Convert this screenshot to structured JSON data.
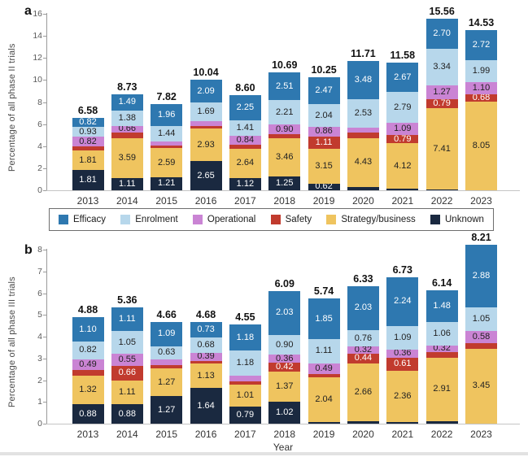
{
  "colors": {
    "efficacy": "#2e78b0",
    "enrolment": "#b7d7eb",
    "operational": "#ca84d4",
    "safety": "#c13b2e",
    "strategy_business": "#efc45f",
    "unknown": "#1a2940",
    "label_dark": "#222222",
    "label_light": "#ffffff"
  },
  "legend": {
    "items": [
      {
        "key": "efficacy",
        "label": "Efficacy"
      },
      {
        "key": "enrolment",
        "label": "Enrolment"
      },
      {
        "key": "operational",
        "label": "Operational"
      },
      {
        "key": "safety",
        "label": "Safety"
      },
      {
        "key": "strategy_business",
        "label": "Strategy/business"
      },
      {
        "key": "unknown",
        "label": "Unknown"
      }
    ]
  },
  "chart_data": [
    {
      "type": "bar",
      "stacked": true,
      "panel_label": "a",
      "ylabel": "Percentage of all phase II trials",
      "xlabel": "",
      "ylim": [
        0,
        16
      ],
      "ytick_step": 2,
      "legend_position": "below panel a, boxed, horizontal",
      "grid": false,
      "categories": [
        "2013",
        "2014",
        "2015",
        "2016",
        "2017",
        "2018",
        "2019",
        "2020",
        "2021",
        "2022",
        "2023"
      ],
      "totals": [
        "6.58",
        "8.73",
        "7.82",
        "10.04",
        "8.60",
        "10.69",
        "10.25",
        "11.71",
        "11.58",
        "15.56",
        "14.53"
      ],
      "series": [
        {
          "name": "Efficacy",
          "key": "efficacy",
          "text": "light",
          "values": [
            0.82,
            1.49,
            1.96,
            2.09,
            2.25,
            2.51,
            2.47,
            3.48,
            2.67,
            2.7,
            2.72
          ],
          "labels": [
            "0.82",
            "1.49",
            "1.96",
            "2.09",
            "2.25",
            "2.51",
            "2.47",
            "3.48",
            "2.67",
            "2.70",
            "2.72"
          ]
        },
        {
          "name": "Enrolment",
          "key": "enrolment",
          "text": "dark",
          "values": [
            0.93,
            1.38,
            1.44,
            1.69,
            1.41,
            2.21,
            2.04,
            2.53,
            2.79,
            3.34,
            1.99
          ],
          "labels": [
            "0.93",
            "1.38",
            "1.44",
            "1.69",
            "1.41",
            "2.21",
            "2.04",
            "2.53",
            "2.79",
            "3.34",
            "1.99"
          ]
        },
        {
          "name": "Operational",
          "key": "operational",
          "text": "dark",
          "values": [
            0.82,
            0.66,
            0.35,
            0.4,
            0.84,
            0.9,
            0.86,
            0.5,
            1.09,
            1.27,
            1.1
          ],
          "labels": [
            "0.82",
            "0.66",
            "",
            "",
            "0.84",
            "0.90",
            "0.86",
            "",
            "1.09",
            "1.27",
            "1.10"
          ]
        },
        {
          "name": "Safety",
          "key": "safety",
          "text": "light",
          "values": [
            0.39,
            0.5,
            0.27,
            0.28,
            0.34,
            0.36,
            1.11,
            0.45,
            0.79,
            0.79,
            0.68
          ],
          "labels": [
            "",
            "",
            "",
            "",
            "",
            "",
            "1.11",
            "",
            "0.79",
            "0.79",
            "0.68"
          ]
        },
        {
          "name": "Strategy/business",
          "key": "strategy_business",
          "text": "dark",
          "values": [
            1.81,
            3.59,
            2.59,
            2.93,
            2.64,
            3.46,
            3.15,
            4.43,
            4.12,
            7.41,
            8.05
          ],
          "labels": [
            "1.81",
            "3.59",
            "2.59",
            "2.93",
            "2.64",
            "3.46",
            "3.15",
            "4.43",
            "4.12",
            "7.41",
            "8.05"
          ]
        },
        {
          "name": "Unknown",
          "key": "unknown",
          "text": "light",
          "values": [
            1.81,
            1.11,
            1.21,
            2.65,
            1.12,
            1.25,
            0.62,
            0.32,
            0.12,
            0.05,
            0
          ],
          "labels": [
            "1.81",
            "1.11",
            "1.21",
            "2.65",
            "1.12",
            "1.25",
            "0.62",
            "",
            "",
            "",
            ""
          ]
        }
      ]
    },
    {
      "type": "bar",
      "stacked": true,
      "panel_label": "b",
      "ylabel": "Percentage of all phase III trials",
      "xlabel": "Year",
      "ylim": [
        0,
        8
      ],
      "ytick_step": 1,
      "grid": false,
      "categories": [
        "2013",
        "2014",
        "2015",
        "2016",
        "2017",
        "2018",
        "2019",
        "2020",
        "2021",
        "2022",
        "2023"
      ],
      "totals": [
        "4.88",
        "5.36",
        "4.66",
        "4.68",
        "4.55",
        "6.09",
        "5.74",
        "6.33",
        "6.73",
        "6.14",
        "8.21"
      ],
      "series": [
        {
          "name": "Efficacy",
          "key": "efficacy",
          "text": "light",
          "values": [
            1.1,
            1.11,
            1.09,
            0.73,
            1.18,
            2.03,
            1.85,
            2.03,
            2.24,
            1.48,
            2.88
          ],
          "labels": [
            "1.10",
            "1.11",
            "1.09",
            "0.73",
            "1.18",
            "2.03",
            "1.85",
            "2.03",
            "2.24",
            "1.48",
            "2.88"
          ]
        },
        {
          "name": "Enrolment",
          "key": "enrolment",
          "text": "dark",
          "values": [
            0.82,
            1.05,
            0.63,
            0.68,
            1.18,
            0.9,
            1.11,
            0.76,
            1.09,
            1.06,
            1.05
          ],
          "labels": [
            "0.82",
            "1.05",
            "0.63",
            "0.68",
            "1.18",
            "0.90",
            "1.11",
            "0.76",
            "1.09",
            "1.06",
            "1.05"
          ]
        },
        {
          "name": "Operational",
          "key": "operational",
          "text": "dark",
          "values": [
            0.49,
            0.55,
            0.24,
            0.39,
            0.24,
            0.36,
            0.49,
            0.32,
            0.36,
            0.32,
            0.58
          ],
          "labels": [
            "0.49",
            "0.55",
            "",
            "0.39",
            "",
            "0.36",
            "0.49",
            "0.32",
            "0.36",
            "0.32",
            "0.58"
          ]
        },
        {
          "name": "Safety",
          "key": "safety",
          "text": "light",
          "values": [
            0.27,
            0.66,
            0.16,
            0.11,
            0.15,
            0.42,
            0.16,
            0.44,
            0.61,
            0.25,
            0.25
          ],
          "labels": [
            "",
            "0.66",
            "",
            "",
            "",
            "0.42",
            "",
            "0.44",
            "0.61",
            "",
            ""
          ]
        },
        {
          "name": "Strategy/business",
          "key": "strategy_business",
          "text": "dark",
          "values": [
            1.32,
            1.11,
            1.27,
            1.13,
            1.01,
            1.37,
            2.04,
            2.66,
            2.36,
            2.91,
            3.45
          ],
          "labels": [
            "1.32",
            "1.11",
            "1.27",
            "1.13",
            "1.01",
            "1.37",
            "2.04",
            "2.66",
            "2.36",
            "2.91",
            "3.45"
          ]
        },
        {
          "name": "Unknown",
          "key": "unknown",
          "text": "light",
          "values": [
            0.88,
            0.88,
            1.27,
            1.64,
            0.79,
            1.02,
            0.09,
            0.12,
            0.07,
            0.12,
            0
          ],
          "labels": [
            "0.88",
            "0.88",
            "1.27",
            "1.64",
            "0.79",
            "1.02",
            "",
            "",
            "",
            "",
            ""
          ]
        }
      ]
    }
  ]
}
